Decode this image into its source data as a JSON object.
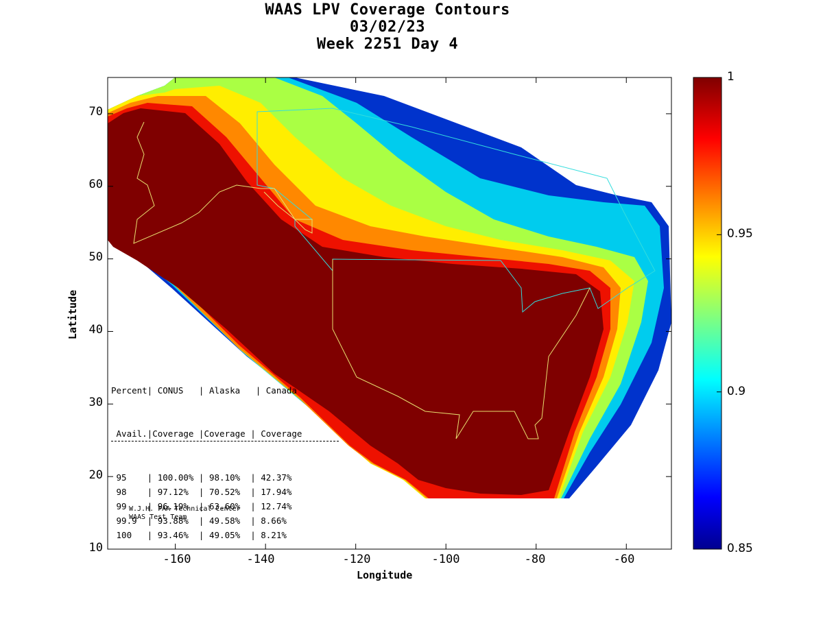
{
  "title": {
    "line1": "WAAS LPV Coverage Contours",
    "line2": "03/02/23",
    "line3": "Week 2251 Day 4"
  },
  "axes": {
    "xlabel": "Longitude",
    "ylabel": "Latitude",
    "xticks": [
      "-160",
      "-140",
      "-120",
      "-100",
      "-80",
      "-60"
    ],
    "yticks": [
      "70",
      "60",
      "50",
      "40",
      "30",
      "20",
      "10"
    ],
    "xlim": [
      -175,
      -50
    ],
    "ylim": [
      10,
      75
    ]
  },
  "colorbar": {
    "ticks": [
      "1",
      "0.95",
      "0.9",
      "0.85"
    ],
    "range": [
      0.85,
      1.0
    ],
    "colormap": "jet",
    "low_color": "#00008f",
    "high_color": "#7f0000"
  },
  "coverage_table": {
    "header1": "Percent| CONUS   | Alaska   | Canada",
    "header2": " Avail.|Coverage |Coverage | Coverage",
    "rows": [
      {
        "percent": "95",
        "conus": "100.00%",
        "alaska": "98.10%",
        "canada": "42.37%"
      },
      {
        "percent": "98",
        "conus": "97.12%",
        "alaska": "70.52%",
        "canada": "17.94%"
      },
      {
        "percent": "99",
        "conus": "96.19%",
        "alaska": "63.60%",
        "canada": "12.74%"
      },
      {
        "percent": "99.9",
        "conus": "93.88%",
        "alaska": "49.58%",
        "canada": "8.66%"
      },
      {
        "percent": "100",
        "conus": "93.46%",
        "alaska": "49.05%",
        "canada": "8.21%"
      }
    ]
  },
  "credit": {
    "line1": "W.J.H. FAA Technical Center",
    "line2": "WAAS Test Team"
  }
}
